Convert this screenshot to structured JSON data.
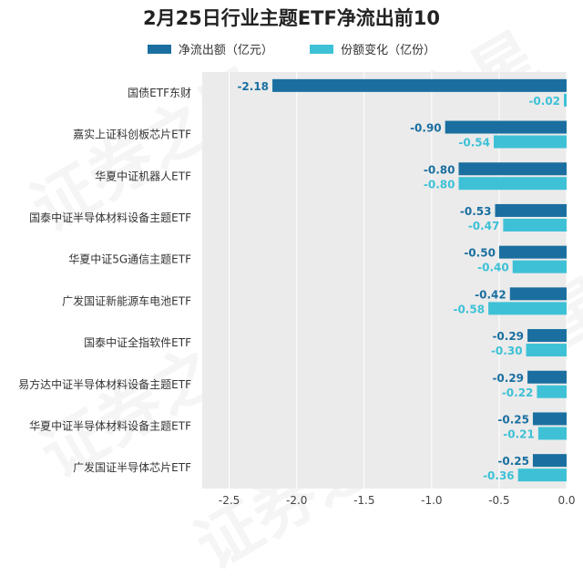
{
  "chart_data": {
    "type": "bar",
    "orientation": "horizontal",
    "title": "2月25日行业主题ETF净流出前10",
    "categories": [
      "国债ETF东财",
      "嘉实上证科创板芯片ETF",
      "华夏中证机器人ETF",
      "国泰中证半导体材料设备主题ETF",
      "华夏中证5G通信主题ETF",
      "广发国证新能源车电池ETF",
      "国泰中证全指软件ETF",
      "易方达中证半导体材料设备主题ETF",
      "华夏中证半导体材料设备主题ETF",
      "广发国证半导体芯片ETF"
    ],
    "series": [
      {
        "name": "净流出额（亿元）",
        "color": "#1a6fa0",
        "values": [
          -2.18,
          -0.9,
          -0.8,
          -0.53,
          -0.5,
          -0.42,
          -0.29,
          -0.29,
          -0.25,
          -0.25
        ]
      },
      {
        "name": "份额变化（亿份）",
        "color": "#3ec1d6",
        "values": [
          -0.02,
          -0.54,
          -0.8,
          -0.47,
          -0.4,
          -0.58,
          -0.3,
          -0.22,
          -0.21,
          -0.36
        ]
      }
    ],
    "xlim": [
      -2.7,
      0.0
    ],
    "xticks": [
      "-2.5",
      "-2.0",
      "-1.5",
      "-1.0",
      "-0.5",
      "0.0"
    ],
    "legend_position": "top",
    "grid": true,
    "plot_background": "#ebebeb",
    "data_labels": [
      [
        "-2.18",
        "-0.02"
      ],
      [
        "-0.90",
        "-0.54"
      ],
      [
        "-0.80",
        "-0.80"
      ],
      [
        "-0.53",
        "-0.47"
      ],
      [
        "-0.50",
        "-0.40"
      ],
      [
        "-0.42",
        "-0.58"
      ],
      [
        "-0.29",
        "-0.30"
      ],
      [
        "-0.29",
        "-0.22"
      ],
      [
        "-0.25",
        "-0.21"
      ],
      [
        "-0.25",
        "-0.36"
      ]
    ]
  },
  "watermark": "证券之星"
}
